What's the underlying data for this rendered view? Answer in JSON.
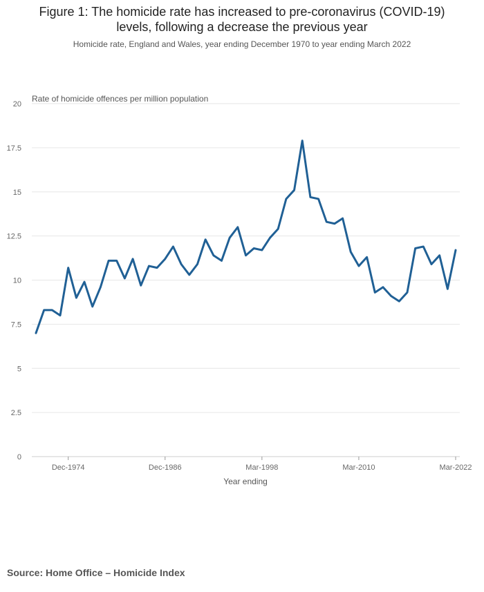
{
  "header": {
    "title_line1": "Figure 1: The homicide rate has increased to pre-coronavirus (COVID-19)",
    "title_line2": "levels, following a decrease the previous year",
    "subtitle": "Homicide rate, England and Wales, year ending December 1970 to year ending March 2022"
  },
  "source": {
    "prefix": "Source: ",
    "name": "Home Office – Homicide Index"
  },
  "colors": {
    "line": "#206095",
    "grid": "#e6e6e6",
    "axis": "#666666"
  },
  "chart_data": {
    "type": "line",
    "title": "Figure 1: The homicide rate has increased to pre-coronavirus (COVID-19) levels, following a decrease the previous year",
    "ylabel": "Rate of homicide offences per million population",
    "xlabel": "Year ending",
    "ylim": [
      0,
      20
    ],
    "yticks": [
      0,
      2.5,
      5,
      7.5,
      10,
      12.5,
      15,
      17.5,
      20
    ],
    "ytick_labels": [
      "0",
      "2.5",
      "5",
      "7.5",
      "10",
      "12.5",
      "15",
      "17.5",
      "20"
    ],
    "xtick_labels": [
      {
        "index": 4,
        "label": "Dec-1974"
      },
      {
        "index": 16,
        "label": "Dec-1986"
      },
      {
        "index": 28,
        "label": "Mar-1998"
      },
      {
        "index": 40,
        "label": "Mar-2010"
      },
      {
        "index": 52,
        "label": "Mar-2022"
      }
    ],
    "series": [
      {
        "name": "Homicide rate",
        "values": [
          7.0,
          8.3,
          8.3,
          8.0,
          10.7,
          9.0,
          9.9,
          8.5,
          9.6,
          11.1,
          11.1,
          10.1,
          11.2,
          9.7,
          10.8,
          10.7,
          11.2,
          11.9,
          10.9,
          10.3,
          10.9,
          12.3,
          11.4,
          11.1,
          12.4,
          13.0,
          11.4,
          11.8,
          11.7,
          12.4,
          12.9,
          14.6,
          15.1,
          17.9,
          14.7,
          14.6,
          13.3,
          13.2,
          13.5,
          11.6,
          10.8,
          11.3,
          9.3,
          9.6,
          9.1,
          8.8,
          9.3,
          11.8,
          11.9,
          10.9,
          11.4,
          9.5,
          11.7
        ]
      }
    ],
    "grid": true,
    "legend": "none"
  }
}
